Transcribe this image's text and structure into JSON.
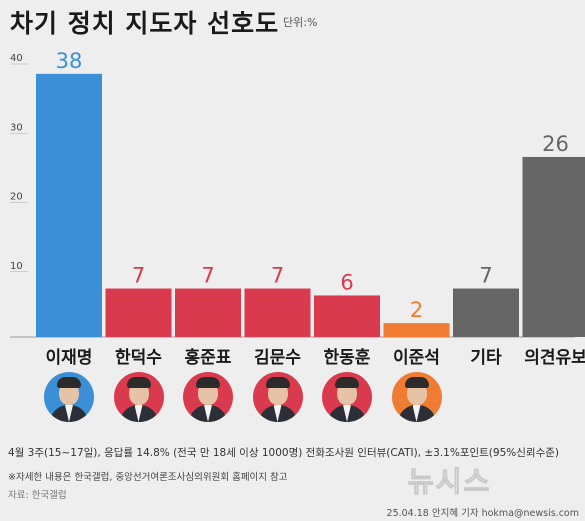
{
  "header": {
    "title": "차기 정치 지도자 선호도",
    "unit": "단위:%"
  },
  "chart_data": {
    "type": "bar",
    "categories": [
      "이재명",
      "한덕수",
      "홍준표",
      "김문수",
      "한동훈",
      "이준석",
      "기타",
      "의견유보"
    ],
    "values": [
      38,
      7,
      7,
      7,
      6,
      2,
      7,
      26
    ],
    "value_labels": [
      "38",
      "7",
      "7",
      "7",
      "6",
      "2",
      "7",
      "26"
    ],
    "colors": [
      "#3a8fd6",
      "#d93a4d",
      "#d93a4d",
      "#d93a4d",
      "#d93a4d",
      "#f07c33",
      "#666666",
      "#666666"
    ],
    "ylim": [
      0,
      40
    ],
    "yticks": [
      "10",
      "20",
      "30",
      "40"
    ],
    "grid": false,
    "title": "차기 정치 지도자 선호도",
    "xlabel": "",
    "ylabel": ""
  },
  "avatars": [
    {
      "name": "이재명",
      "bg": "#3a8fd6"
    },
    {
      "name": "한덕수",
      "bg": "#d93a4d"
    },
    {
      "name": "홍준표",
      "bg": "#d93a4d"
    },
    {
      "name": "김문수",
      "bg": "#d93a4d"
    },
    {
      "name": "한동훈",
      "bg": "#d93a4d"
    },
    {
      "name": "이준석",
      "bg": "#f07c33"
    }
  ],
  "footer": {
    "method": "4월 3주(15~17일), 응답률 14.8% (전국 만 18세 이상 1000명) 전화조사원 인터뷰(CATI), ±3.1%포인트(95%신뢰수준)",
    "note": "※자세한 내용은 한국갤럽, 중앙선거여론조사심의위원회 홈페이지 참고",
    "source": "자료: 한국갤럽",
    "watermark": "뉴시스",
    "credit": "25.04.18 안지혜 기자 hokma@newsis.com"
  }
}
